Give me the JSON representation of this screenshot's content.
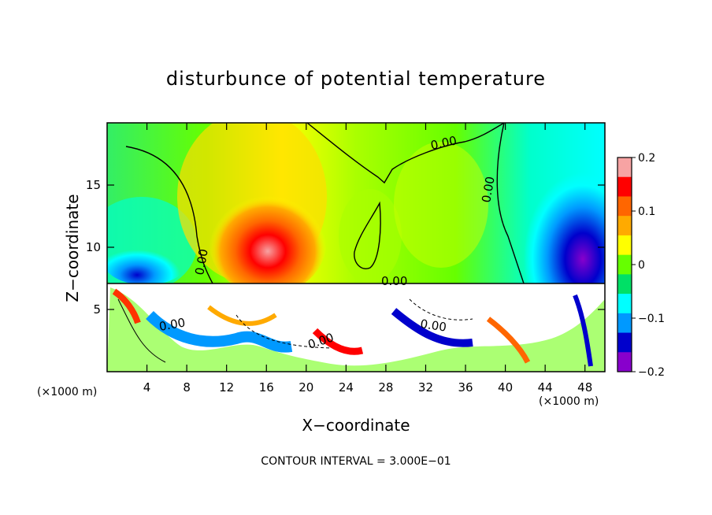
{
  "chart_data": {
    "type": "heatmap",
    "title": "disturbunce of potential temperature",
    "xlabel": "X−coordinate",
    "ylabel": "Z−coordinate",
    "x_unit_left": "(×1000 m)",
    "x_unit_right": "(×1000 m)",
    "xticks": [
      "4",
      "8",
      "12",
      "16",
      "20",
      "24",
      "28",
      "32",
      "36",
      "40",
      "44",
      "48"
    ],
    "xlim": [
      0,
      50
    ],
    "yticks": [
      "5",
      "10",
      "15"
    ],
    "ylim": [
      0,
      20
    ],
    "colorbar_ticks": [
      "0.2",
      "0.1",
      "0",
      "−0.1",
      "−0.2"
    ],
    "colorbar_range": [
      -0.2,
      0.2
    ],
    "colorbar_colors": [
      "#f7a3a3",
      "#ff0000",
      "#ff6600",
      "#ffaa00",
      "#ffff00",
      "#66ff00",
      "#00e066",
      "#00ffff",
      "#0099ff",
      "#0000cc",
      "#8800cc"
    ],
    "contour_labels": [
      "0.00",
      "0.00",
      "0.00",
      "0.00",
      "0.00",
      "0.00",
      "0.00"
    ],
    "footer": "CONTOUR INTERVAL = 3.000E−01"
  }
}
